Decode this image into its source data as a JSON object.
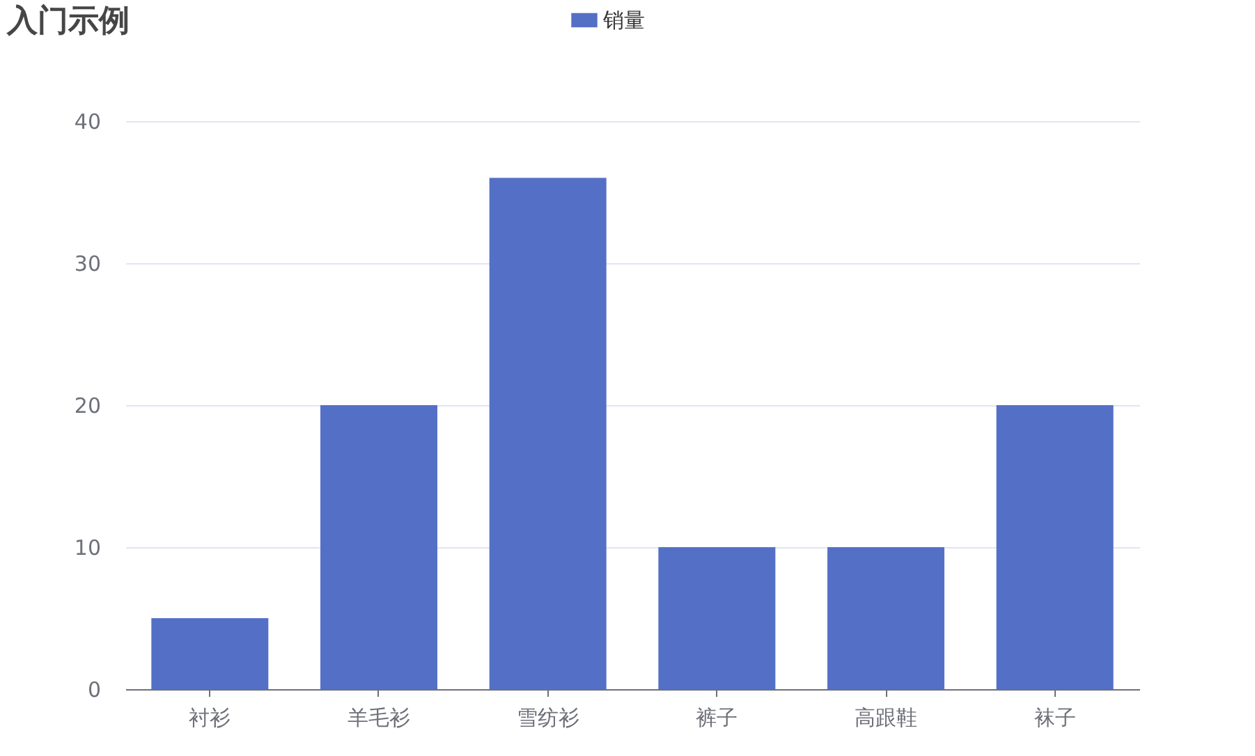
{
  "chart_data": {
    "type": "bar",
    "title": "入门示例",
    "categories": [
      "衬衫",
      "羊毛衫",
      "雪纺衫",
      "裤子",
      "高跟鞋",
      "袜子"
    ],
    "series": [
      {
        "name": "销量",
        "color": "#5470c6",
        "values": [
          5,
          20,
          36,
          10,
          10,
          20
        ]
      }
    ],
    "ylim": [
      0,
      40
    ],
    "yticks": [
      0,
      10,
      20,
      30,
      40
    ],
    "grid": "y",
    "legend": "top"
  }
}
